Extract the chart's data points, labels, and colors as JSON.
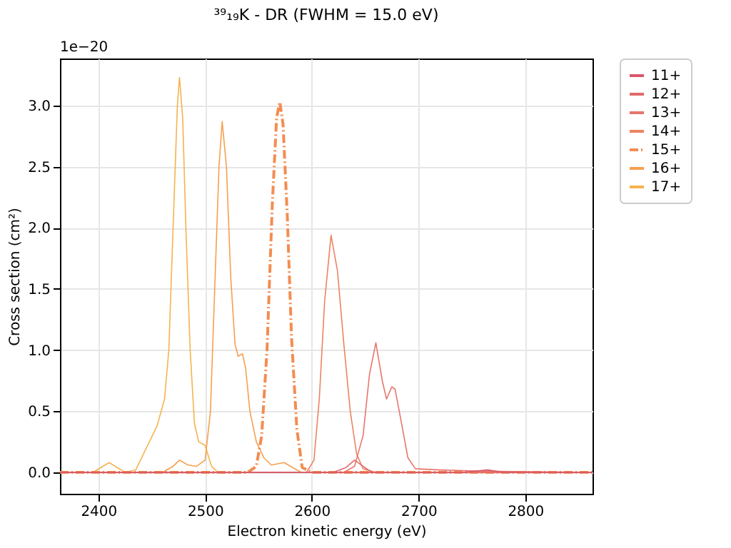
{
  "chart_data": {
    "type": "line",
    "title": "³⁹₁₉K - DR (FWHM = 15.0 eV)",
    "xlabel": "Electron kinetic energy (eV)",
    "ylabel": "Cross section (cm²)",
    "annotations": [
      "1e−20"
    ],
    "xlim": [
      2364,
      2863
    ],
    "xticks": [
      2400,
      2500,
      2600,
      2700,
      2800
    ],
    "ylim": [
      -0.175,
      3.385
    ],
    "yticks": [
      {
        "value": 0,
        "label": "0.0"
      },
      0.5,
      {
        "value": 1,
        "label": "1.0"
      },
      1.5,
      {
        "value": 2,
        "label": "2.0"
      },
      2.5,
      {
        "value": 3,
        "label": "3.0"
      }
    ],
    "grid": true,
    "legend": "right",
    "marker": "none",
    "line_style": "solid",
    "series": [
      {
        "name": "11+",
        "color": "#d9576b",
        "x": [
          2364,
          2740,
          2765,
          2780,
          2863
        ],
        "values": [
          0,
          0,
          0.02,
          0,
          0
        ]
      },
      {
        "name": "12+",
        "color": "#e06a6c",
        "x": [
          2364,
          2620,
          2632,
          2640,
          2648,
          2656,
          2863
        ],
        "values": [
          0,
          0,
          0.04,
          0.1,
          0.05,
          0,
          0
        ]
      },
      {
        "name": "13+",
        "color": "#e8766c",
        "x": [
          2364,
          2630,
          2640,
          2648,
          2654,
          2660,
          2666,
          2670,
          2675,
          2678,
          2683,
          2690,
          2697,
          2720,
          2760,
          2863
        ],
        "values": [
          0,
          0,
          0.05,
          0.3,
          0.8,
          1.06,
          0.75,
          0.6,
          0.7,
          0.68,
          0.45,
          0.12,
          0.03,
          0.02,
          0.01,
          0
        ]
      },
      {
        "name": "14+",
        "color": "#ee8260",
        "x": [
          2364,
          2595,
          2602,
          2607,
          2612,
          2618,
          2624,
          2630,
          2636,
          2642,
          2648,
          2660,
          2863
        ],
        "values": [
          0,
          0,
          0.1,
          0.6,
          1.4,
          1.94,
          1.65,
          1.05,
          0.5,
          0.15,
          0.03,
          0,
          0
        ]
      },
      {
        "name": "15+",
        "color": "#f48c50",
        "line_style": "dashed",
        "x": [
          2364,
          2540,
          2548,
          2553,
          2558,
          2563,
          2567,
          2570,
          2573,
          2577,
          2581,
          2586,
          2591,
          2600,
          2863
        ],
        "values": [
          0,
          0,
          0.05,
          0.3,
          1.0,
          2.2,
          2.9,
          3.03,
          2.85,
          2.1,
          1.1,
          0.35,
          0.04,
          0,
          0
        ]
      },
      {
        "name": "16+",
        "color": "#f5a04e",
        "x": [
          2364,
          2460,
          2470,
          2476,
          2484,
          2492,
          2500,
          2505,
          2509,
          2513,
          2516,
          2520,
          2524,
          2528,
          2531,
          2535,
          2538,
          2542,
          2548,
          2555,
          2562,
          2568,
          2574,
          2580,
          2590,
          2863
        ],
        "values": [
          0,
          0,
          0.05,
          0.1,
          0.06,
          0.05,
          0.1,
          0.5,
          1.5,
          2.5,
          2.87,
          2.5,
          1.6,
          1.05,
          0.95,
          0.97,
          0.85,
          0.5,
          0.25,
          0.12,
          0.06,
          0.07,
          0.08,
          0.05,
          0,
          0
        ]
      },
      {
        "name": "17+",
        "color": "#f6b24e",
        "x": [
          2364,
          2395,
          2410,
          2425,
          2435,
          2445,
          2455,
          2462,
          2466,
          2470,
          2474,
          2476,
          2479,
          2482,
          2486,
          2490,
          2494,
          2500,
          2506,
          2512,
          2863
        ],
        "values": [
          0,
          0,
          0.08,
          0,
          0.02,
          0.2,
          0.38,
          0.6,
          1.0,
          2.0,
          3.0,
          3.23,
          2.9,
          2.0,
          1.0,
          0.4,
          0.25,
          0.22,
          0.05,
          0,
          0
        ]
      }
    ]
  }
}
